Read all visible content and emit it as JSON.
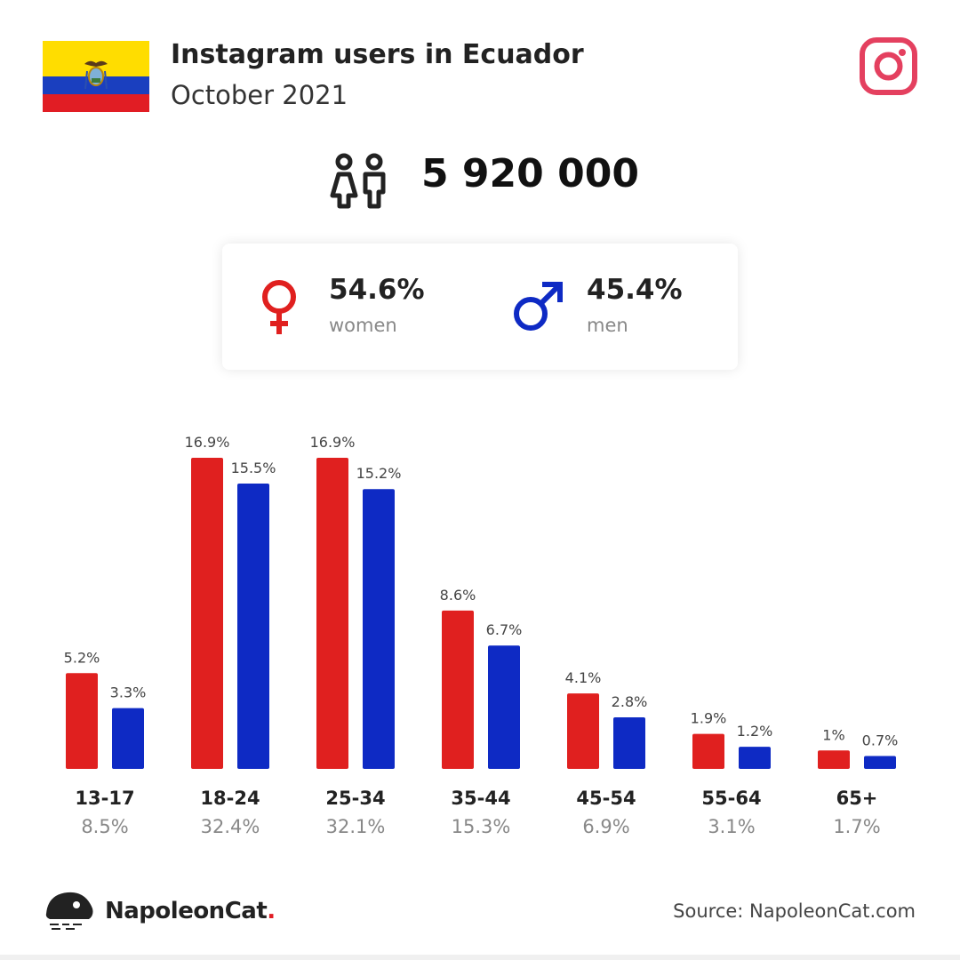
{
  "header": {
    "title": "Instagram users in Ecuador",
    "subtitle": "October 2021"
  },
  "total_users": "5 920 000",
  "gender": {
    "women": {
      "pct": "54.6%",
      "label": "women"
    },
    "men": {
      "pct": "45.4%",
      "label": "men"
    }
  },
  "colors": {
    "women": "#e0201f",
    "men": "#0e2ac4",
    "instagram": "#e4405f"
  },
  "chart_data": {
    "type": "bar",
    "categories": [
      "13-17",
      "18-24",
      "25-34",
      "35-44",
      "45-54",
      "55-64",
      "65+"
    ],
    "category_totals": [
      "8.5%",
      "32.4%",
      "32.1%",
      "15.3%",
      "6.9%",
      "3.1%",
      "1.7%"
    ],
    "series": [
      {
        "name": "women",
        "values": [
          5.2,
          16.9,
          16.9,
          8.6,
          4.1,
          1.9,
          1
        ],
        "labels": [
          "5.2%",
          "16.9%",
          "16.9%",
          "8.6%",
          "4.1%",
          "1.9%",
          "1%"
        ]
      },
      {
        "name": "men",
        "values": [
          3.3,
          15.5,
          15.2,
          6.7,
          2.8,
          1.2,
          0.7
        ],
        "labels": [
          "3.3%",
          "15.5%",
          "15.2%",
          "6.7%",
          "2.8%",
          "1.2%",
          "0.7%"
        ]
      }
    ],
    "ylim": [
      0,
      16.9
    ],
    "grid": false
  },
  "footer": {
    "brand": "NapoleonCat",
    "brand_dot": ".",
    "source": "Source: NapoleonCat.com"
  }
}
